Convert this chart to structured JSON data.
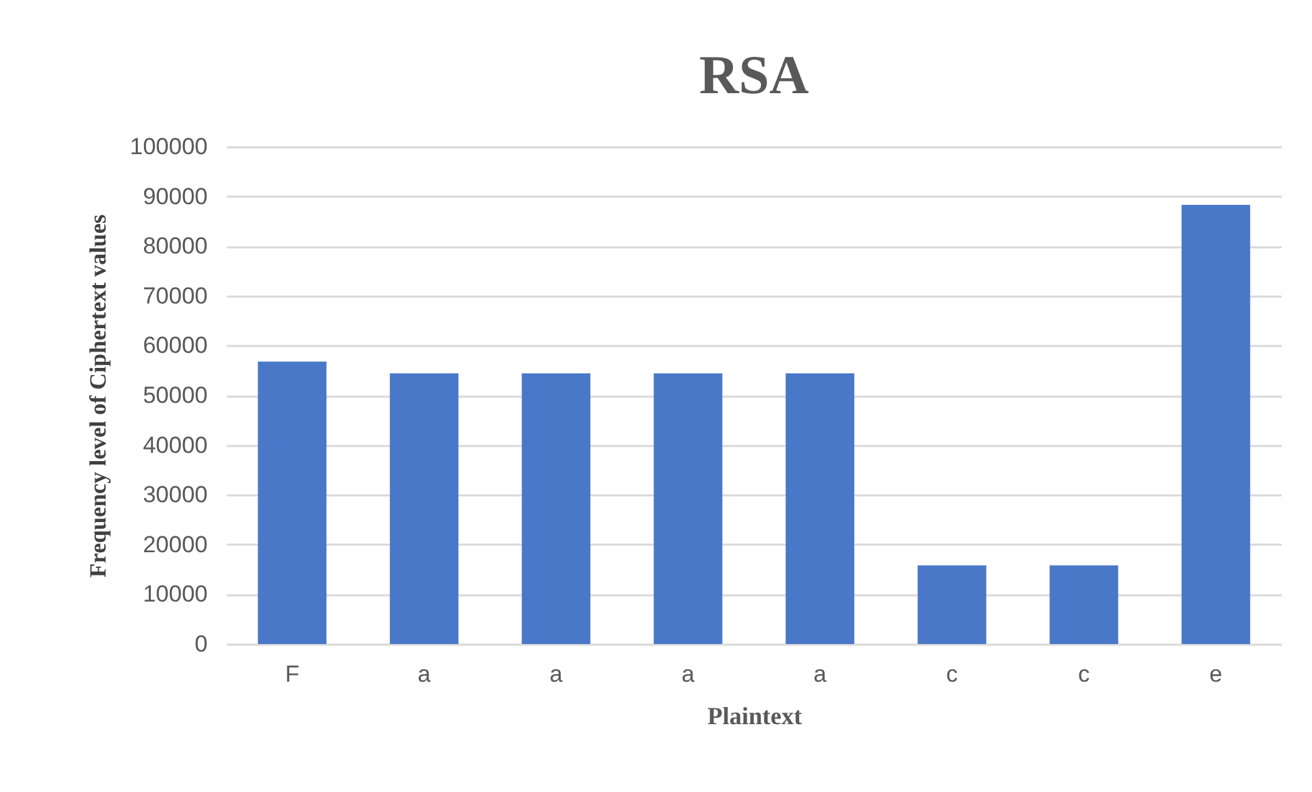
{
  "chart_data": {
    "type": "bar",
    "title": "RSA",
    "xlabel": "Plaintext",
    "ylabel": "Frequency level of Ciphertext values",
    "categories": [
      "F",
      "a",
      "a",
      "a",
      "a",
      "c",
      "c",
      "e"
    ],
    "values": [
      56800,
      54400,
      54400,
      54400,
      54400,
      15800,
      15800,
      88300
    ],
    "color": "#4a78c8",
    "ylim": [
      0,
      100000
    ],
    "yticks": [
      0,
      10000,
      20000,
      30000,
      40000,
      50000,
      60000,
      70000,
      80000,
      90000,
      100000
    ],
    "grid": "y"
  }
}
